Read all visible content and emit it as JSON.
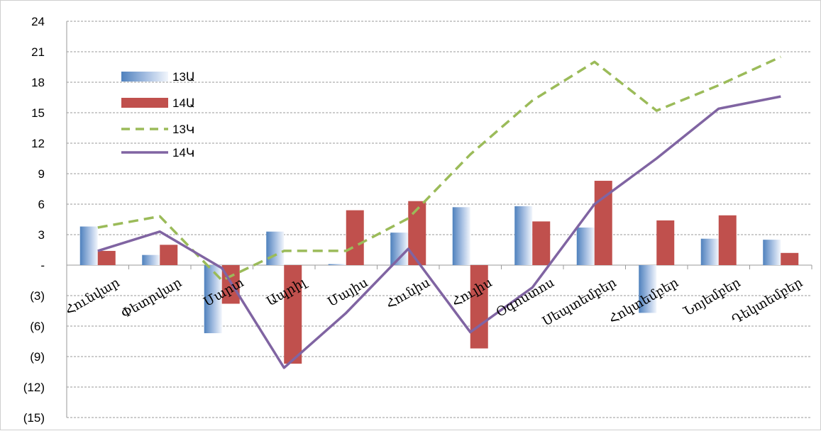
{
  "chart_data": {
    "type": "bar",
    "categories": [
      "Հունվար",
      "Փետրվար",
      "Մարտ",
      "Ապրիլ",
      "Մայիս",
      "Հունիս",
      "Հուլիս",
      "Օգոստոս",
      "Սեպտեմբեր",
      "Հոկտեմբեր",
      "Նոյեմբեր",
      "Դեկտեմբեր"
    ],
    "series": [
      {
        "name": "13Ա",
        "kind": "bar",
        "color": "#4f81bd",
        "values": [
          3.8,
          1.0,
          -6.7,
          3.3,
          0.1,
          3.2,
          5.7,
          5.8,
          3.7,
          -4.7,
          2.6,
          2.5
        ]
      },
      {
        "name": "14Ա",
        "kind": "bar",
        "color": "#c0504d",
        "values": [
          1.4,
          2.0,
          -3.8,
          -9.7,
          5.4,
          6.3,
          -8.2,
          4.3,
          8.3,
          4.4,
          4.9,
          1.2
        ]
      },
      {
        "name": "13Կ",
        "kind": "line",
        "style": "dashed",
        "color": "#9bbb59",
        "values": [
          3.7,
          4.8,
          -1.5,
          1.4,
          1.4,
          4.6,
          10.9,
          16.2,
          20.0,
          15.2,
          17.7,
          20.5
        ]
      },
      {
        "name": "14Կ",
        "kind": "line",
        "style": "solid",
        "color": "#8064a2",
        "values": [
          1.4,
          3.3,
          -0.3,
          -10.1,
          -4.7,
          1.6,
          -6.6,
          -2.2,
          6.0,
          10.5,
          15.4,
          16.6
        ]
      }
    ],
    "ylim": [
      -15,
      24
    ],
    "yticks": [
      24,
      21,
      18,
      15,
      12,
      9,
      6,
      3,
      0,
      -3,
      -6,
      -9,
      -12,
      -15
    ],
    "ytick_labels": [
      "24",
      "21",
      "18",
      "15",
      "12",
      "9",
      "6",
      "3",
      "-",
      "(3)",
      "(6)",
      "(9)",
      "(12)",
      "(15)"
    ],
    "grid": true,
    "legend": "upper-left"
  }
}
